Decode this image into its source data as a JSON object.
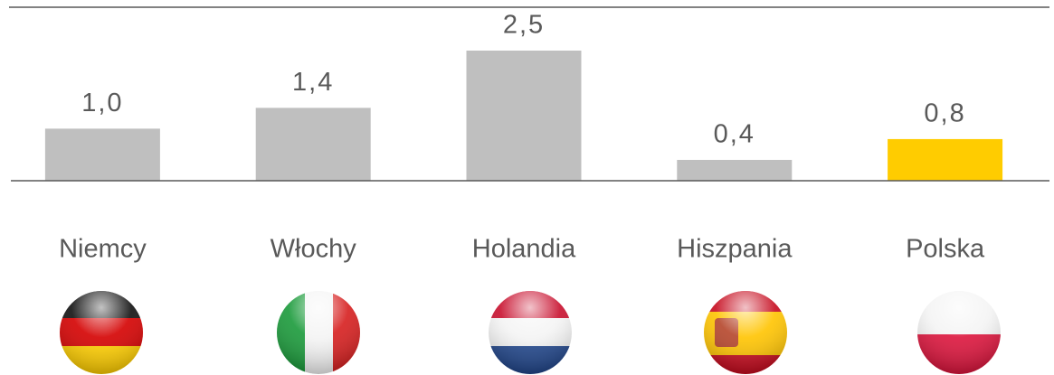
{
  "chart_data": {
    "type": "bar",
    "categories": [
      "Niemcy",
      "Włochy",
      "Holandia",
      "Hiszpania",
      "Polska"
    ],
    "values": [
      1.0,
      1.4,
      2.5,
      0.4,
      0.8
    ],
    "value_labels": [
      "1,0",
      "1,4",
      "2,5",
      "0,4",
      "0,8"
    ],
    "colors": [
      "#bfbfbf",
      "#bfbfbf",
      "#bfbfbf",
      "#bfbfbf",
      "#ffcc00"
    ],
    "ylim": [
      0,
      2.5
    ]
  }
}
